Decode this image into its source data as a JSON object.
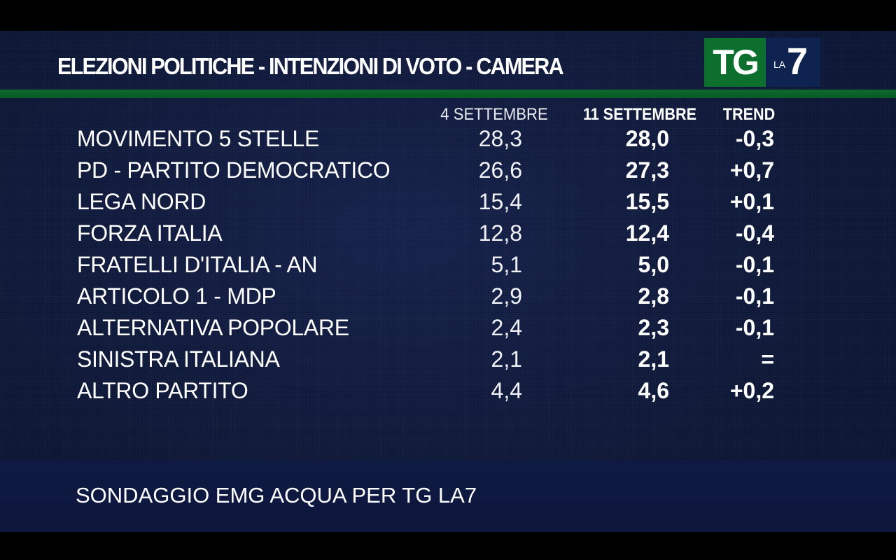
{
  "header": {
    "title": "ELEZIONI POLITICHE - INTENZIONI DI VOTO - CAMERA",
    "logo_tg": "TG",
    "logo_la": "LA",
    "logo_seven": "7"
  },
  "colors": {
    "background": "#0e1838",
    "accent_green": "#0d6f2e",
    "logo_blue": "#0f2350",
    "text": "#ffffff"
  },
  "chart_data": {
    "type": "table",
    "title": "ELEZIONI POLITICHE - INTENZIONI DI VOTO - CAMERA",
    "columns": [
      "4 SETTEMBRE",
      "11 SETTEMBRE",
      "TREND"
    ],
    "rows": [
      {
        "party": "MOVIMENTO 5 STELLE",
        "prev": "28,3",
        "cur": "28,0",
        "trend": "-0,3"
      },
      {
        "party": "PD - PARTITO DEMOCRATICO",
        "prev": "26,6",
        "cur": "27,3",
        "trend": "+0,7"
      },
      {
        "party": "LEGA NORD",
        "prev": "15,4",
        "cur": "15,5",
        "trend": "+0,1"
      },
      {
        "party": "FORZA ITALIA",
        "prev": "12,8",
        "cur": "12,4",
        "trend": "-0,4"
      },
      {
        "party": "FRATELLI D'ITALIA - AN",
        "prev": "5,1",
        "cur": "5,0",
        "trend": "-0,1"
      },
      {
        "party": "ARTICOLO 1 - MDP",
        "prev": "2,9",
        "cur": "2,8",
        "trend": "-0,1"
      },
      {
        "party": "ALTERNATIVA POPOLARE",
        "prev": "2,4",
        "cur": "2,3",
        "trend": "-0,1"
      },
      {
        "party": "SINISTRA ITALIANA",
        "prev": "2,1",
        "cur": "2,1",
        "trend": "="
      },
      {
        "party": "ALTRO PARTITO",
        "prev": "4,4",
        "cur": "4,6",
        "trend": "+0,2"
      }
    ],
    "source": "SONDAGGIO EMG ACQUA PER TG LA7"
  }
}
